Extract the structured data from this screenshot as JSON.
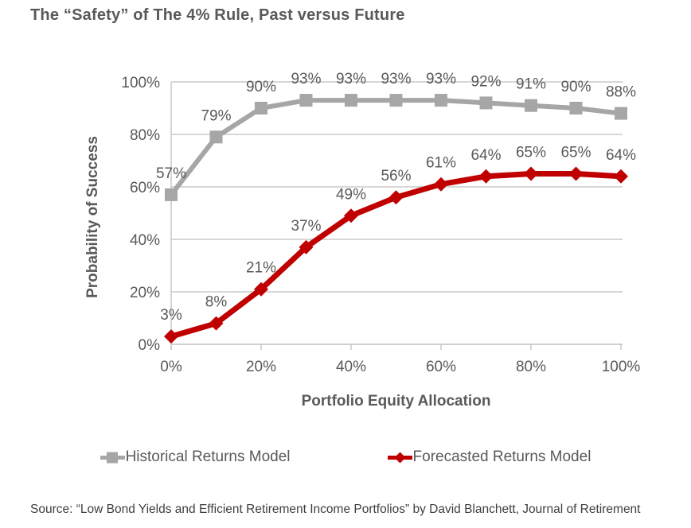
{
  "page": {
    "title": "The “Safety” of The 4% Rule, Past versus Future",
    "source": "Source: “Low Bond Yields and Efficient Retirement Income Portfolios” by David Blanchett, Journal of Retirement"
  },
  "colors": {
    "historical": "#a6a6a6",
    "forecasted": "#c00000",
    "axis_text": "#595959",
    "gridline": "#bfbfbf",
    "source_text": "#3f3f3f"
  },
  "legend": {
    "items": [
      {
        "label": "Historical Returns Model",
        "marker": "square",
        "color": "#a6a6a6"
      },
      {
        "label": "Forecasted Returns Model",
        "marker": "diamond",
        "color": "#c00000"
      }
    ]
  },
  "chart_data": {
    "type": "line",
    "title": "The “Safety” of The 4% Rule, Past versus Future",
    "xlabel": "Portfolio Equity Allocation",
    "ylabel": "Probability of Success",
    "x": [
      0,
      10,
      20,
      30,
      40,
      50,
      60,
      70,
      80,
      90,
      100
    ],
    "xlim": [
      0,
      100
    ],
    "ylim": [
      0,
      100
    ],
    "x_ticks": [
      0,
      20,
      40,
      60,
      80,
      100
    ],
    "x_tick_labels": [
      "0%",
      "20%",
      "40%",
      "60%",
      "80%",
      "100%"
    ],
    "y_ticks": [
      0,
      20,
      40,
      60,
      80,
      100
    ],
    "y_tick_labels": [
      "0%",
      "20%",
      "40%",
      "60%",
      "80%",
      "100%"
    ],
    "grid": "horizontal",
    "legend_position": "bottom",
    "series": [
      {
        "name": "Historical Returns Model",
        "color": "#a6a6a6",
        "marker": "square",
        "values": [
          57,
          79,
          90,
          93,
          93,
          93,
          93,
          92,
          91,
          90,
          88
        ],
        "data_labels": [
          "57%",
          "79%",
          "90%",
          "93%",
          "93%",
          "93%",
          "93%",
          "92%",
          "91%",
          "90%",
          "88%"
        ]
      },
      {
        "name": "Forecasted Returns Model",
        "color": "#c00000",
        "marker": "diamond",
        "values": [
          3,
          8,
          21,
          37,
          49,
          56,
          61,
          64,
          65,
          65,
          64
        ],
        "data_labels": [
          "3%",
          "8%",
          "21%",
          "37%",
          "49%",
          "56%",
          "61%",
          "64%",
          "65%",
          "65%",
          "64%"
        ]
      }
    ]
  }
}
